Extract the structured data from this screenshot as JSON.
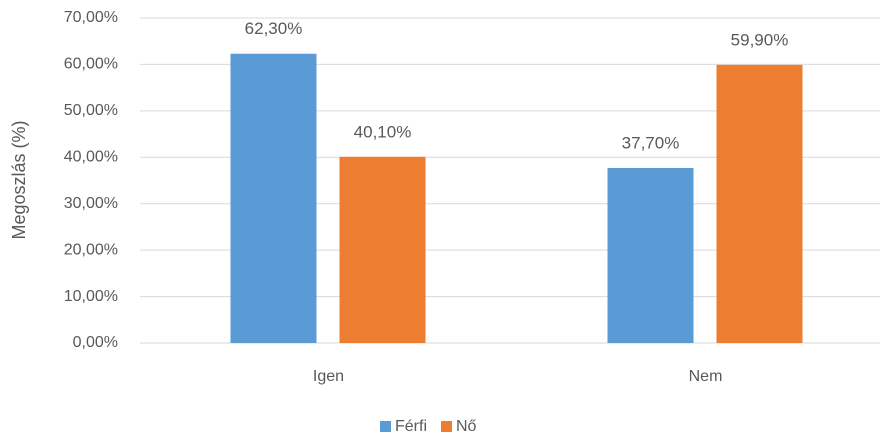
{
  "chart_data": {
    "type": "bar",
    "ylabel": "Megoszlás (%)",
    "categories": [
      "Igen",
      "Nem"
    ],
    "series": [
      {
        "name": "Férfi",
        "color": "#5b9bd5",
        "values": [
          62.3,
          37.7
        ],
        "value_labels": [
          "62,30%",
          "37,70%"
        ]
      },
      {
        "name": "Nő",
        "color": "#ed7d31",
        "values": [
          40.1,
          59.9
        ],
        "value_labels": [
          "40,10%",
          "59,90%"
        ]
      }
    ],
    "ylim": [
      0,
      70
    ],
    "yticks": [
      {
        "value": 0,
        "label": "0,00%"
      },
      {
        "value": 10,
        "label": "10,00%"
      },
      {
        "value": 20,
        "label": "20,00%"
      },
      {
        "value": 30,
        "label": "30,00%"
      },
      {
        "value": 40,
        "label": "40,00%"
      },
      {
        "value": 50,
        "label": "50,00%"
      },
      {
        "value": 60,
        "label": "60,00%"
      },
      {
        "value": 70,
        "label": "70,00%"
      }
    ],
    "grid": true,
    "legend": "bottom"
  }
}
